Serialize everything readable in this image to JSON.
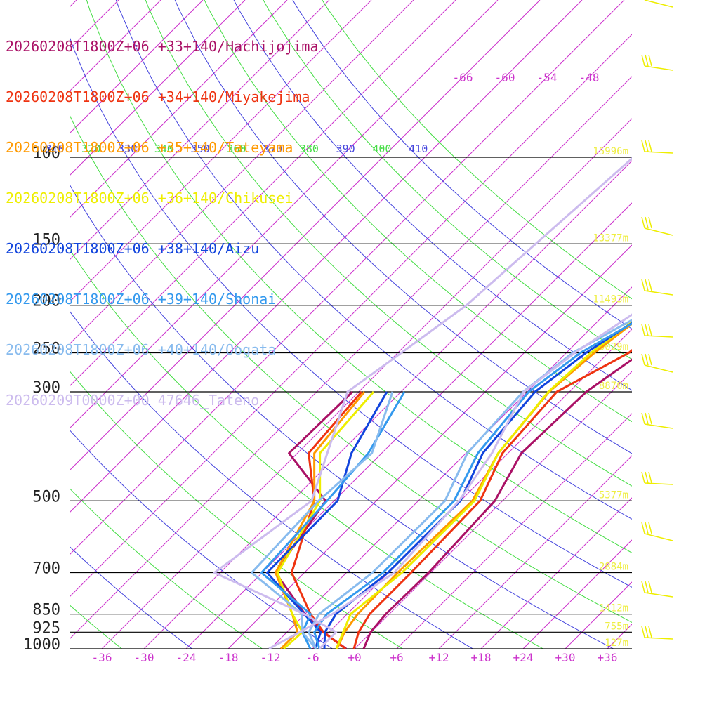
{
  "chart_data": {
    "type": "line",
    "legend": [
      {
        "label": "20260208T1800Z+06 +33+140/Hachijojima",
        "color": "#aa1166"
      },
      {
        "label": "20260208T1800Z+06 +34+140/Miyakejima",
        "color": "#ee3311"
      },
      {
        "label": "20260208T1800Z+06 +35+140/Tateyama",
        "color": "#ff9900"
      },
      {
        "label": "20260208T1800Z+06 +36+140/Chikusei",
        "color": "#eeee00"
      },
      {
        "label": "20260208T1800Z+06 +38+140/Aizu",
        "color": "#1144dd"
      },
      {
        "label": "20260208T1800Z+06 +39+140/Shonai",
        "color": "#3399ee"
      },
      {
        "label": "20260208T1800Z+06 +40+140/Oogata",
        "color": "#88bbee"
      },
      {
        "label": "20260209T0000Z+00 47646_Tateno",
        "color": "#ccbbee"
      }
    ],
    "pressure_levels": [
      "100",
      "150",
      "200",
      "250",
      "300",
      "500",
      "700",
      "850",
      "925",
      "1000"
    ],
    "height_labels": [
      {
        "p": 100,
        "label": "15996m"
      },
      {
        "p": 150,
        "label": "13377m"
      },
      {
        "p": 200,
        "label": "11493m"
      },
      {
        "p": 250,
        "label": "10029m"
      },
      {
        "p": 300,
        "label": "8870m"
      },
      {
        "p": 500,
        "label": "5377m"
      },
      {
        "p": 700,
        "label": "2884m"
      },
      {
        "p": 850,
        "label": "1412m"
      },
      {
        "p": 925,
        "label": "755m"
      },
      {
        "p": 1000,
        "label": "127m"
      }
    ],
    "temperature_ticks": [
      "-36",
      "-30",
      "-24",
      "-18",
      "-12",
      "-6",
      "+0",
      "+6",
      "+12",
      "+18",
      "+24",
      "+30",
      "+36"
    ],
    "upper_temperature_labels": [
      "-66",
      "-60",
      "-54",
      "-48"
    ],
    "theta_labels": [
      "310",
      "320",
      "330",
      "340",
      "350",
      "360",
      "370",
      "380",
      "390",
      "400",
      "410"
    ],
    "series": [
      {
        "name": "Hachijojima",
        "color": "#aa1166",
        "temperature": [
          [
            -1.7,
            100
          ],
          [
            -1.7,
            200
          ],
          [
            -1.3,
            250
          ],
          [
            -3.6,
            300
          ],
          [
            -4.1,
            400
          ],
          [
            -1.1,
            500
          ],
          [
            -0.3,
            700
          ],
          [
            -0.5,
            850
          ],
          [
            -0.1,
            925
          ],
          [
            1.3,
            1000
          ]
        ],
        "dewpoint": [
          [
            -36.9,
            300
          ],
          [
            -37.2,
            400
          ],
          [
            -25.2,
            500
          ],
          [
            -22.1,
            700
          ],
          [
            -12,
            850
          ],
          [
            -6.8,
            925
          ],
          [
            -1.2,
            1000
          ]
        ]
      },
      {
        "name": "Miyakejima",
        "color": "#ee3311",
        "temperature": [
          [
            -0.5,
            100
          ],
          [
            -1.3,
            200
          ],
          [
            -3.1,
            250
          ],
          [
            -7.8,
            300
          ],
          [
            -6.8,
            400
          ],
          [
            -3.2,
            500
          ],
          [
            -2.8,
            700
          ],
          [
            -2.8,
            850
          ],
          [
            -1.8,
            925
          ],
          [
            -0.1,
            1000
          ]
        ],
        "dewpoint": [
          [
            -35.6,
            300
          ],
          [
            -34.4,
            400
          ],
          [
            -26.8,
            500
          ],
          [
            -19.8,
            700
          ],
          [
            -11.2,
            850
          ],
          [
            -6.8,
            925
          ],
          [
            -1.3,
            1000
          ]
        ]
      },
      {
        "name": "Tateyama",
        "color": "#ff9900",
        "temperature": [
          [
            -3.0,
            100
          ],
          [
            -6.0,
            200
          ],
          [
            -8.0,
            250
          ],
          [
            -8.9,
            300
          ],
          [
            -7.4,
            400
          ],
          [
            -4.3,
            500
          ],
          [
            -4.7,
            700
          ],
          [
            -4.5,
            850
          ],
          [
            -3.8,
            925
          ],
          [
            -2.5,
            1000
          ]
        ],
        "dewpoint": [
          [
            -35.2,
            300
          ],
          [
            -33.6,
            400
          ],
          [
            -26.8,
            500
          ],
          [
            -22.1,
            700
          ],
          [
            -13.8,
            850
          ],
          [
            -10.5,
            925
          ],
          [
            -10.5,
            1000
          ]
        ]
      },
      {
        "name": "Chikusei",
        "color": "#eeee00",
        "temperature": [
          [
            -2.5,
            100
          ],
          [
            -6.2,
            200
          ],
          [
            -8.5,
            250
          ],
          [
            -9.0,
            300
          ],
          [
            -7.4,
            400
          ],
          [
            -4.0,
            500
          ],
          [
            -4.1,
            700
          ],
          [
            -5.5,
            850
          ],
          [
            -4.0,
            925
          ],
          [
            -2.6,
            1000
          ]
        ],
        "dewpoint": [
          [
            -33.9,
            300
          ],
          [
            -32.8,
            400
          ],
          [
            -26.0,
            500
          ],
          [
            -21.8,
            700
          ],
          [
            -13.8,
            850
          ],
          [
            -9.8,
            925
          ],
          [
            -10.1,
            1000
          ]
        ]
      },
      {
        "name": "Aizu",
        "color": "#1144dd",
        "temperature": [
          [
            -2.6,
            100
          ],
          [
            -5.5,
            200
          ],
          [
            -9.2,
            250
          ],
          [
            -10.9,
            300
          ],
          [
            -9.6,
            400
          ],
          [
            -6.0,
            500
          ],
          [
            -6.1,
            700
          ],
          [
            -7.6,
            850
          ],
          [
            -6.6,
            925
          ],
          [
            -4.3,
            1000
          ]
        ],
        "dewpoint": [
          [
            -32.0,
            300
          ],
          [
            -28.3,
            400
          ],
          [
            -23.5,
            500
          ],
          [
            -23.3,
            700
          ],
          [
            -12.1,
            850
          ],
          [
            -7.2,
            925
          ],
          [
            -5.6,
            1000
          ]
        ]
      },
      {
        "name": "Shonai",
        "color": "#3399ee",
        "temperature": [
          [
            -2.7,
            100
          ],
          [
            -4.8,
            200
          ],
          [
            -10.0,
            250
          ],
          [
            -11.8,
            300
          ],
          [
            -10.3,
            400
          ],
          [
            -6.9,
            500
          ],
          [
            -6.8,
            700
          ],
          [
            -8.9,
            850
          ],
          [
            -8.1,
            925
          ],
          [
            -5.0,
            1000
          ]
        ],
        "dewpoint": [
          [
            -29.5,
            300
          ],
          [
            -25.9,
            400
          ],
          [
            -25.0,
            500
          ],
          [
            -24.1,
            700
          ],
          [
            -11.2,
            850
          ],
          [
            -9.8,
            925
          ],
          [
            -6.3,
            1000
          ]
        ]
      },
      {
        "name": "Oogata",
        "color": "#88bbee",
        "temperature": [
          [
            -2.7,
            100
          ],
          [
            -5.6,
            200
          ],
          [
            -11.1,
            250
          ],
          [
            -12.6,
            300
          ],
          [
            -11.8,
            400
          ],
          [
            -8.2,
            500
          ],
          [
            -8.3,
            700
          ],
          [
            -10.0,
            850
          ],
          [
            -8.9,
            925
          ],
          [
            -5.5,
            1000
          ]
        ],
        "dewpoint": [
          [
            -31.2,
            300
          ],
          [
            -25.4,
            400
          ],
          [
            -26.2,
            500
          ],
          [
            -25.5,
            700
          ],
          [
            -12.4,
            850
          ],
          [
            -9.8,
            925
          ],
          [
            -5.5,
            1000
          ]
        ]
      },
      {
        "name": "47646_Tateno",
        "color": "#ccbbee",
        "temperature": [
          [
            -2.7,
            100
          ],
          [
            -4.6,
            150
          ],
          [
            -7.4,
            200
          ],
          [
            -10.8,
            250
          ],
          [
            -12.5,
            300
          ],
          [
            -8.3,
            400
          ],
          [
            -6.2,
            500
          ],
          [
            -5.2,
            700
          ],
          [
            -8.1,
            850
          ],
          [
            -10.2,
            925
          ],
          [
            -12.2,
            1000
          ]
        ],
        "dewpoint": [
          [
            -30.3,
            100
          ],
          [
            -33.0,
            200
          ],
          [
            -35.5,
            250
          ],
          [
            -37.6,
            300
          ],
          [
            -27.2,
            500
          ],
          [
            -30.8,
            700
          ],
          [
            -12.1,
            850
          ],
          [
            -5.0,
            925
          ],
          [
            -5.0,
            1000
          ]
        ]
      }
    ],
    "ylim": [
      100,
      1000
    ],
    "xlim": [
      -40,
      40
    ],
    "skewed_temperature_axis": true,
    "log_pressure_axis": true,
    "wind_barbs": true
  }
}
